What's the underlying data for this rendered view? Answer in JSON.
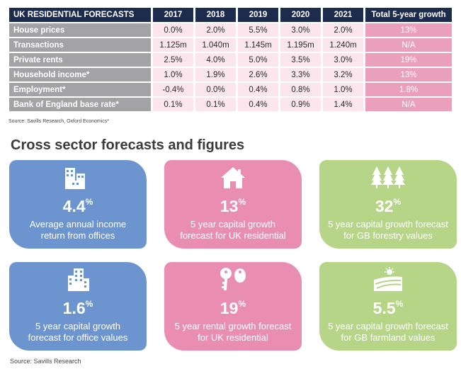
{
  "table": {
    "title": "UK RESIDENTIAL FORECASTS",
    "years": [
      "2017",
      "2018",
      "2019",
      "2020",
      "2021"
    ],
    "total_header": "Total 5-year growth",
    "rows": [
      {
        "label": "House prices",
        "values": [
          "0.0%",
          "2.0%",
          "5.5%",
          "3.0%",
          "2.0%"
        ],
        "total": "13%"
      },
      {
        "label": "Transactions",
        "values": [
          "1.125m",
          "1.040m",
          "1.145m",
          "1.195m",
          "1.240m"
        ],
        "total": "N/A"
      },
      {
        "label": "Private rents",
        "values": [
          "2.5%",
          "4.0%",
          "5.0%",
          "3.5%",
          "3.0%"
        ],
        "total": "19%"
      },
      {
        "label": "Household income*",
        "values": [
          "1.0%",
          "1.9%",
          "2.6%",
          "3.3%",
          "3.2%"
        ],
        "total": "13%"
      },
      {
        "label": "Employment*",
        "values": [
          "-0.4%",
          "0.0%",
          "0.4%",
          "0.8%",
          "1.0%"
        ],
        "total": "1.8%"
      },
      {
        "label": "Bank of England base rate*",
        "values": [
          "0.1%",
          "0.1%",
          "0.4%",
          "0.9%",
          "1.4%"
        ],
        "total": "N/A"
      }
    ],
    "source": "Source: Savills Research, Oxford Economics*"
  },
  "section_title": "Cross sector forecasts and figures",
  "cards": [
    {
      "icon": "office-buildings-icon",
      "number": "4.4",
      "unit": "%",
      "desc_line1": "Average annual income",
      "desc_line2": "return from offices",
      "color": "#6c95d0"
    },
    {
      "icon": "house-icon",
      "number": "13",
      "unit": "%",
      "desc_line1": "5 year capital growth",
      "desc_line2": "forecast for UK residential",
      "color": "#e98eb0"
    },
    {
      "icon": "forest-trees-icon",
      "number": "32",
      "unit": "%",
      "desc_line1": "5 year capital growth forecast",
      "desc_line2": "for GB forestry values",
      "color": "#b6d586"
    },
    {
      "icon": "office-block-icon",
      "number": "1.6",
      "unit": "%",
      "desc_line1": "5 year capital growth",
      "desc_line2": "forecast for office values",
      "color": "#6c95d0"
    },
    {
      "icon": "keys-icon",
      "number": "19",
      "unit": "%",
      "desc_line1": "5 year rental growth forecast",
      "desc_line2": "for UK residential",
      "color": "#e98eb0"
    },
    {
      "icon": "farmland-sun-icon",
      "number": "5.5",
      "unit": "%",
      "desc_line1": "5 year capital growth forecast",
      "desc_line2": "for GB farmland values",
      "color": "#b6d586"
    }
  ],
  "source": "Source: Savills Research"
}
